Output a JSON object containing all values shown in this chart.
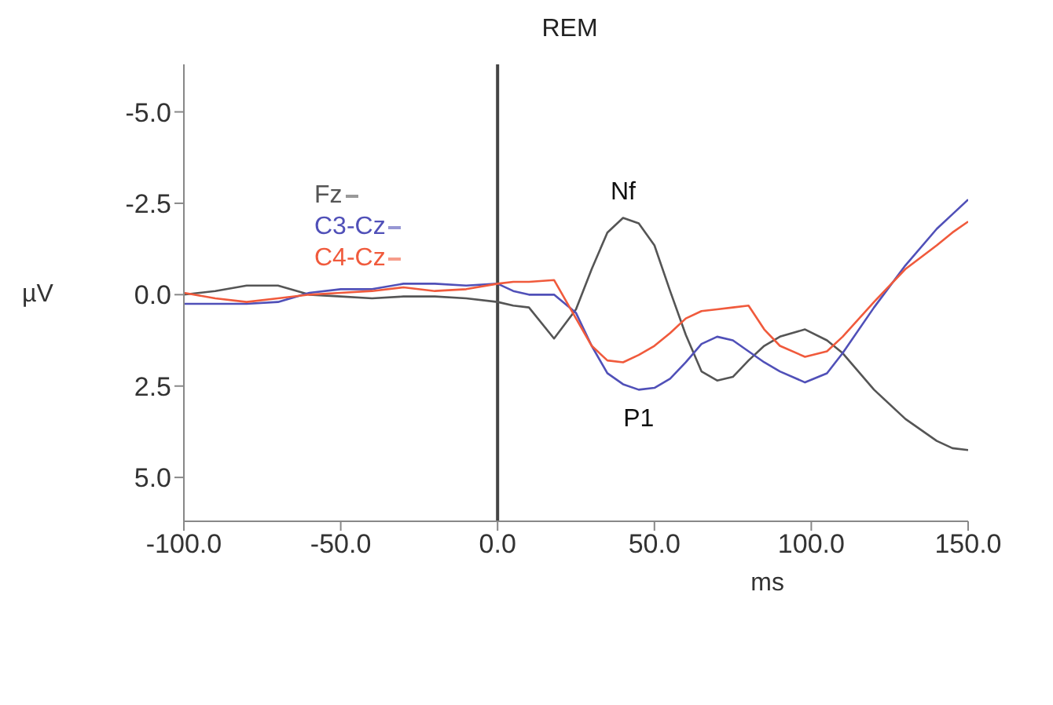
{
  "chart_data": {
    "type": "line",
    "title": "REM",
    "xlabel": "ms",
    "ylabel": "µV",
    "x": [
      -100,
      -90,
      -80,
      -70,
      -60,
      -50,
      -40,
      -30,
      -20,
      -10,
      0,
      5,
      10,
      18,
      25,
      30,
      35,
      40,
      45,
      50,
      55,
      60,
      65,
      70,
      75,
      80,
      85,
      90,
      98,
      105,
      110,
      120,
      130,
      140,
      145,
      150
    ],
    "series": [
      {
        "name": "Fz",
        "color": "#555555",
        "values": [
          0.0,
          -0.1,
          -0.25,
          -0.25,
          0,
          0.05,
          0.1,
          0.05,
          0.05,
          0.1,
          0.2,
          0.3,
          0.35,
          1.2,
          0.4,
          -0.7,
          -1.7,
          -2.1,
          -1.95,
          -1.35,
          -0.1,
          1.1,
          2.1,
          2.35,
          2.25,
          1.8,
          1.4,
          1.15,
          0.95,
          1.25,
          1.6,
          2.6,
          3.4,
          4.0,
          4.2,
          4.25
        ]
      },
      {
        "name": "C3-Cz",
        "color": "#5050b8",
        "values": [
          0.25,
          0.25,
          0.25,
          0.2,
          -0.05,
          -0.15,
          -0.15,
          -0.3,
          -0.3,
          -0.25,
          -0.3,
          -0.1,
          0,
          0,
          0.5,
          1.4,
          2.15,
          2.45,
          2.6,
          2.55,
          2.3,
          1.85,
          1.35,
          1.15,
          1.25,
          1.55,
          1.85,
          2.1,
          2.4,
          2.15,
          1.6,
          0.35,
          -0.8,
          -1.8,
          -2.2,
          -2.6
        ]
      },
      {
        "name": "C4-Cz",
        "color": "#f05a3c",
        "values": [
          -0.05,
          0.1,
          0.2,
          0.1,
          0,
          -0.05,
          -0.1,
          -0.2,
          -0.1,
          -0.15,
          -0.3,
          -0.35,
          -0.35,
          -0.4,
          0.65,
          1.4,
          1.8,
          1.85,
          1.65,
          1.4,
          1.05,
          0.65,
          0.45,
          0.4,
          0.35,
          0.3,
          0.95,
          1.4,
          1.7,
          1.55,
          1.15,
          0.2,
          -0.7,
          -1.35,
          -1.7,
          -2.0
        ]
      }
    ],
    "xlim": [
      -100,
      150
    ],
    "xticks": [
      {
        "value": -100,
        "label": "-100.0"
      },
      {
        "value": -50,
        "label": "-50.0"
      },
      {
        "value": 0,
        "label": "0.0"
      },
      {
        "value": 50,
        "label": "50.0"
      },
      {
        "value": 100,
        "label": "100.0"
      },
      {
        "value": 150,
        "label": "150.0"
      }
    ],
    "ylim": [
      6.2,
      -6.3
    ],
    "yticks": [
      {
        "value": -5,
        "label": "-5.0"
      },
      {
        "value": -2.5,
        "label": "-2.5"
      },
      {
        "value": 0,
        "label": "0.0"
      },
      {
        "value": 2.5,
        "label": "2.5"
      },
      {
        "value": 5,
        "label": "5.0"
      }
    ],
    "ref_lines": [
      {
        "axis": "x",
        "value": 0,
        "color": "#444444"
      }
    ],
    "annotations": [
      {
        "text": "Nf",
        "x": 40,
        "y": -2.1
      },
      {
        "text": "P1",
        "x": 45,
        "y": 2.6
      }
    ],
    "legend": "top left",
    "grid": false,
    "line_style": "solid"
  }
}
